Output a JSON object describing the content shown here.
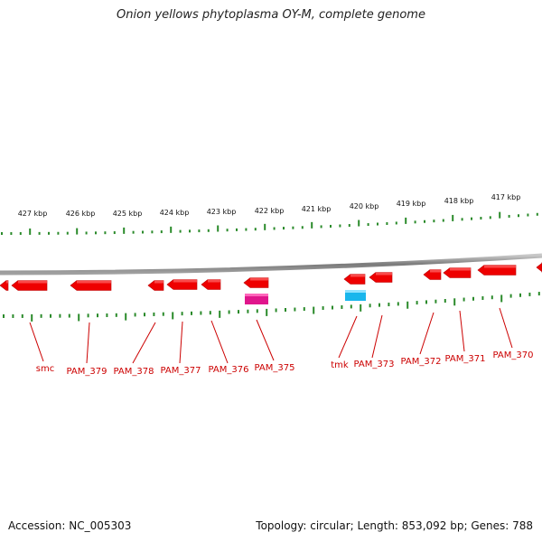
{
  "title": "Onion yellows phytoplasma OY-M, complete genome",
  "footer": {
    "accession": "Accession: NC_005303",
    "topology": "Topology: circular; Length: 853,092 bp; Genes: 788"
  },
  "colors": {
    "gene": "#ee0000",
    "gene_label": "#cc0000",
    "tick": "#2a8a2a",
    "backbone": "#888888",
    "feature_magenta": "#e0168c",
    "feature_cyan": "#19b6ec"
  },
  "kbp_labels": [
    "427 kbp",
    "426 kbp",
    "425 kbp",
    "424 kbp",
    "423 kbp",
    "422 kbp",
    "421 kbp",
    "420 kbp",
    "419 kbp",
    "418 kbp",
    "417 kbp"
  ],
  "gene_labels": [
    "smc",
    "PAM_379",
    "PAM_378",
    "PAM_377",
    "PAM_376",
    "PAM_375",
    "tmk",
    "PAM_373",
    "PAM_372",
    "PAM_371",
    "PAM_370"
  ]
}
